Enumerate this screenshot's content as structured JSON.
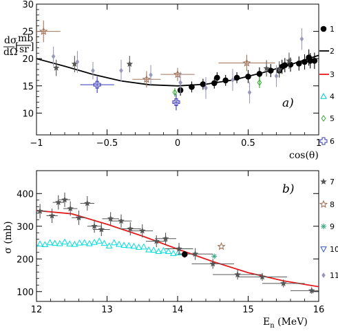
{
  "chart_data": [
    {
      "panel": "a)",
      "type": "scatter",
      "xlabel": "cos(θ)",
      "ylabel_num": "dσ",
      "ylabel_den": "dΩ",
      "ylabel_unit_num": "mb",
      "ylabel_unit_den": "sr",
      "xlim": [
        -1,
        1
      ],
      "ylim": [
        6,
        30
      ],
      "xticks": [
        -1,
        -0.5,
        0,
        0.5,
        1
      ],
      "xtick_labels": [
        "−1",
        "−0.5",
        "0",
        "0.5",
        "1"
      ],
      "yticks": [
        10,
        15,
        20,
        25,
        30
      ],
      "ytick_labels": [
        "10",
        "15",
        "20",
        "25",
        "30"
      ],
      "legend_labels": [
        "1",
        "2",
        "3",
        "4",
        "5",
        "6"
      ],
      "legend_colors": [
        "#000000",
        "#000000",
        "#e41a1c",
        "#00cccc",
        "#33aa33",
        "#3333bb"
      ],
      "legend_markers": [
        "filled-circle",
        "line",
        "line",
        "open-triangle",
        "open-diamond",
        "open-cross"
      ],
      "series": [
        {
          "legend": "1",
          "marker": "filled-circle",
          "color": "#000000",
          "x": [
            0.02,
            0.1,
            0.18,
            0.26,
            0.34,
            0.42,
            0.5,
            0.58,
            0.66,
            0.74,
            0.8,
            0.86,
            0.9,
            0.94
          ],
          "y": [
            14.2,
            14.8,
            15.3,
            15.5,
            16.0,
            16.5,
            16.7,
            17.2,
            17.8,
            18.5,
            18.9,
            19.1,
            19.4,
            19.6
          ],
          "err": [
            1.0,
            1.0,
            1.0,
            1.0,
            1.0,
            1.0,
            1.2,
            1.2,
            1.2,
            1.3,
            1.3,
            1.3,
            1.4,
            1.4
          ]
        },
        {
          "legend": "1",
          "marker": "filled-circle",
          "color": "#000000",
          "x": [
            0.28,
            0.72,
            0.76,
            0.93,
            0.97
          ],
          "y": [
            16.5,
            17.8,
            18.8,
            20.2,
            19.6
          ],
          "err": [
            1.0,
            1.2,
            1.3,
            1.5,
            1.5
          ]
        },
        {
          "legend": "2",
          "type": "line",
          "color": "#000000",
          "x": [
            -1,
            -0.8,
            -0.6,
            -0.4,
            -0.2,
            0,
            0.2,
            0.4,
            0.6,
            0.8,
            1.0
          ],
          "y": [
            20.0,
            18.6,
            17.1,
            15.9,
            15.2,
            15.0,
            15.3,
            16.1,
            17.4,
            18.9,
            20.6
          ]
        },
        {
          "legend": "4",
          "marker": "open-triangle",
          "color": "#00cccc",
          "x": [],
          "y": []
        },
        {
          "legend": "5",
          "marker": "open-diamond",
          "color": "#33aa33",
          "x": [
            -0.02,
            0.58
          ],
          "y": [
            13.8,
            15.6
          ],
          "err": [
            0.8,
            1.0
          ]
        },
        {
          "legend": "6",
          "marker": "open-cross",
          "color": "#3333bb",
          "x": [
            -0.57,
            -0.01
          ],
          "y": [
            15.2,
            12.0
          ],
          "err": [
            1.5,
            1.5
          ],
          "xerr": [
            0.12,
            0.02
          ]
        },
        {
          "legend": "7",
          "marker": "star",
          "color": "#555555",
          "x": [
            -0.86,
            -0.73,
            -0.34,
            0.63,
            0.72,
            0.79
          ],
          "y": [
            18.3,
            19.0,
            19.0,
            18.2,
            18.0,
            19.6
          ],
          "err": [
            1.5,
            1.5,
            1.5,
            1.5,
            1.5,
            1.5
          ]
        },
        {
          "legend": "8",
          "marker": "star-open",
          "color": "#a0735a",
          "x": [
            -0.95,
            -0.22,
            0.0,
            0.49
          ],
          "y": [
            25.0,
            16.2,
            17.1,
            19.2
          ],
          "err": [
            2.0,
            1.5,
            1.2,
            1.5
          ],
          "xerr": [
            0.12,
            0.1,
            0.12,
            0.2
          ]
        },
        {
          "legend": "11",
          "marker": "filled-diamond",
          "color": "#9999bb",
          "x": [
            -0.88,
            -0.71,
            -0.6,
            -0.4,
            -0.19,
            0.02,
            0.2,
            0.39,
            0.51,
            0.7,
            0.88
          ],
          "y": [
            20.4,
            19.4,
            17.8,
            17.8,
            17.0,
            15.6,
            14.6,
            16.1,
            13.8,
            16.8,
            23.6
          ],
          "err": [
            1.8,
            2.0,
            1.6,
            2.0,
            1.8,
            2.0,
            2.0,
            2.0,
            2.0,
            2.0,
            2.0
          ]
        }
      ]
    },
    {
      "panel": "b)",
      "type": "scatter",
      "xlabel": "E",
      "xlabel_sub": "n",
      "xlabel_unit": " (MeV)",
      "ylabel": "σ (mb)",
      "xlim": [
        12,
        16
      ],
      "ylim": [
        70,
        470
      ],
      "xticks": [
        12,
        13,
        14,
        15,
        16
      ],
      "xtick_labels": [
        "12",
        "13",
        "14",
        "15",
        "16"
      ],
      "yticks": [
        100,
        200,
        300,
        400
      ],
      "ytick_labels": [
        "100",
        "200",
        "300",
        "400"
      ],
      "legend_labels": [
        "7",
        "8",
        "9",
        "10",
        "11"
      ],
      "legend_colors": [
        "#555555",
        "#a0735a",
        "#44aa88",
        "#3355bb",
        "#9999bb"
      ],
      "legend_markers": [
        "star",
        "star-open",
        "asterisk",
        "open-triangle-down",
        "filled-diamond"
      ],
      "series": [
        {
          "legend": "3",
          "type": "line",
          "color": "#e41a1c",
          "x": [
            12.0,
            12.5,
            13.0,
            13.5,
            14.0,
            14.5,
            15.0,
            15.5,
            16.0
          ],
          "y": [
            348,
            338,
            306,
            270,
            230,
            192,
            158,
            133,
            115
          ]
        },
        {
          "legend": "cyan",
          "marker": "open-triangle",
          "color": "#00dddd",
          "x": [
            12.05,
            12.12,
            12.19,
            12.26,
            12.33,
            12.4,
            12.47,
            12.54,
            12.61,
            12.68,
            12.75,
            12.82,
            12.89,
            12.96,
            13.03,
            13.1,
            13.17,
            13.24,
            13.31,
            13.38,
            13.45,
            13.52,
            13.59,
            13.66,
            13.73,
            13.8,
            13.87,
            13.94,
            14.01
          ],
          "y": [
            246,
            244,
            250,
            248,
            247,
            252,
            246,
            245,
            249,
            250,
            247,
            251,
            255,
            248,
            240,
            250,
            245,
            242,
            241,
            239,
            236,
            237,
            228,
            227,
            223,
            226,
            223,
            217,
            219
          ]
        },
        {
          "legend": "7",
          "marker": "star",
          "color": "#555555",
          "x": [
            12.05,
            12.22,
            12.31,
            12.4,
            12.48,
            12.6,
            12.72,
            12.82,
            12.92,
            13.05,
            13.2,
            13.33,
            13.5,
            13.7,
            13.83,
            14.02,
            14.25,
            14.5,
            14.85,
            15.2,
            15.5,
            15.9
          ],
          "y": [
            346,
            332,
            373,
            381,
            354,
            326,
            370,
            300,
            290,
            323,
            316,
            292,
            286,
            254,
            262,
            231,
            215,
            185,
            152,
            145,
            125,
            103
          ],
          "err": [
            22,
            22,
            22,
            22,
            22,
            22,
            22,
            20,
            20,
            20,
            20,
            20,
            20,
            18,
            18,
            18,
            18,
            15,
            15,
            12,
            12,
            10
          ],
          "xerr": [
            0.1,
            0.08,
            0.08,
            0.08,
            0.1,
            0.1,
            0.1,
            0.1,
            0.12,
            0.12,
            0.15,
            0.15,
            0.15,
            0.15,
            0.15,
            0.2,
            0.25,
            0.3,
            0.35,
            0.35,
            0.3,
            0.3
          ]
        },
        {
          "legend": "1",
          "marker": "filled-circle",
          "color": "#000000",
          "x": [
            14.1
          ],
          "y": [
            214
          ],
          "err": [
            10
          ]
        },
        {
          "legend": "8",
          "marker": "star-open",
          "color": "#a0735a",
          "x": [
            14.62
          ],
          "y": [
            238
          ],
          "err": [
            0
          ]
        },
        {
          "legend": "9",
          "marker": "asterisk",
          "color": "#44aa88",
          "x": [
            14.52
          ],
          "y": [
            208
          ],
          "err": [
            0
          ]
        }
      ]
    }
  ]
}
